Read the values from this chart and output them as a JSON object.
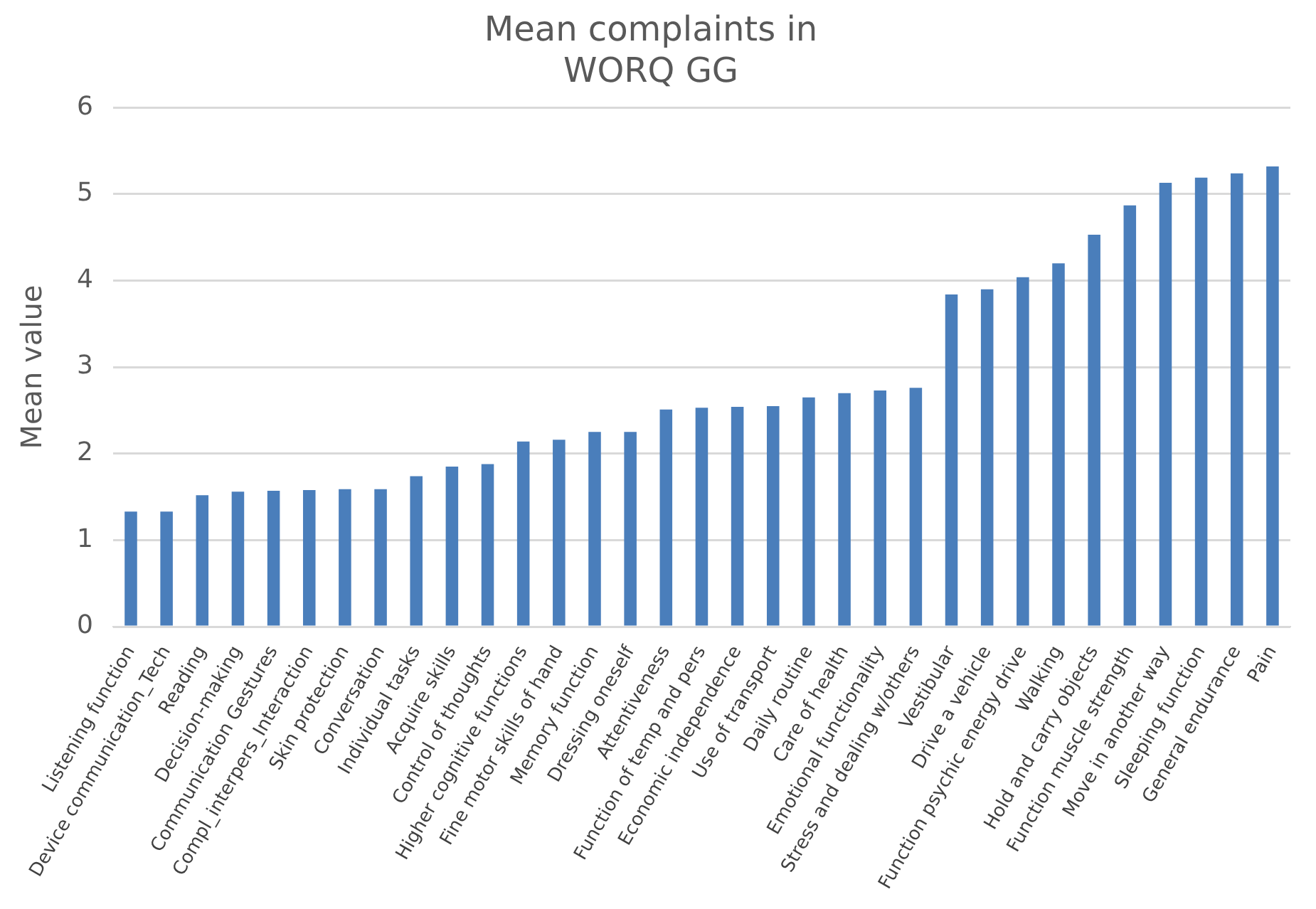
{
  "chart_data": {
    "type": "bar",
    "title": [
      "Mean complaints in",
      "WORQ GG"
    ],
    "ylabel": "Mean value",
    "categories": [
      "Listening function",
      "Device communication_Tech",
      "Reading",
      "Decision-making",
      "Communication Gestures",
      "Compl_interpers_Interaction",
      "Skin protection",
      "Conversation",
      "Individual tasks",
      "Acquire skills",
      "Control of thoughts",
      "Higher cognitive functions",
      "Fine motor skills of hand",
      "Memory function",
      "Dressing oneself",
      "Attentiveness",
      "Function of temp and pers",
      "Economic independence",
      "Use of transport",
      "Daily routine",
      "Care of health",
      "Emotional functionality",
      "Stress and dealing w/others",
      "Vestibular",
      "Drive a vehicle",
      "Function psychic energy drive",
      "Walking",
      "Hold and carry objects",
      "Function muscle strength",
      "Move in another way",
      "Sleeping function",
      "General endurance",
      "Pain"
    ],
    "values": [
      1.33,
      1.33,
      1.52,
      1.56,
      1.57,
      1.58,
      1.59,
      1.59,
      1.74,
      1.85,
      1.88,
      2.14,
      2.16,
      2.25,
      2.25,
      2.51,
      2.53,
      2.54,
      2.55,
      2.65,
      2.7,
      2.73,
      2.76,
      3.84,
      3.9,
      4.04,
      4.2,
      4.53,
      4.87,
      5.13,
      5.19,
      5.24,
      5.32
    ],
    "color": "#4a7ebb",
    "ylim": [
      0,
      6
    ],
    "yticks": [
      0,
      1,
      2,
      3,
      4,
      5,
      6
    ],
    "grid": "y",
    "legend": false
  }
}
